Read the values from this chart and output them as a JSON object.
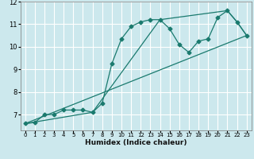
{
  "xlabel": "Humidex (Indice chaleur)",
  "bg_color": "#cce8ed",
  "grid_color": "#ffffff",
  "line_color": "#1a7a6e",
  "xlim": [
    -0.5,
    23.5
  ],
  "ylim": [
    6.3,
    12.0
  ],
  "xticks": [
    0,
    1,
    2,
    3,
    4,
    5,
    6,
    7,
    8,
    9,
    10,
    11,
    12,
    13,
    14,
    15,
    16,
    17,
    18,
    19,
    20,
    21,
    22,
    23
  ],
  "yticks": [
    7,
    8,
    9,
    10,
    11,
    12
  ],
  "curve1_x": [
    0,
    1,
    2,
    3,
    4,
    5,
    6,
    7,
    8,
    9,
    10,
    11,
    12,
    13,
    14,
    15,
    16,
    17,
    18,
    19,
    20,
    21,
    22,
    23
  ],
  "curve1_y": [
    6.6,
    6.65,
    7.0,
    7.0,
    7.2,
    7.2,
    7.2,
    7.1,
    7.5,
    9.25,
    10.35,
    10.9,
    11.1,
    11.2,
    11.2,
    10.8,
    10.1,
    9.75,
    10.25,
    10.35,
    11.3,
    11.6,
    11.1,
    10.5
  ],
  "curve2_x": [
    0,
    23
  ],
  "curve2_y": [
    6.6,
    10.5
  ],
  "curve3_x": [
    0,
    7,
    14,
    21,
    22,
    23
  ],
  "curve3_y": [
    6.6,
    7.1,
    11.2,
    11.6,
    11.1,
    10.5
  ]
}
